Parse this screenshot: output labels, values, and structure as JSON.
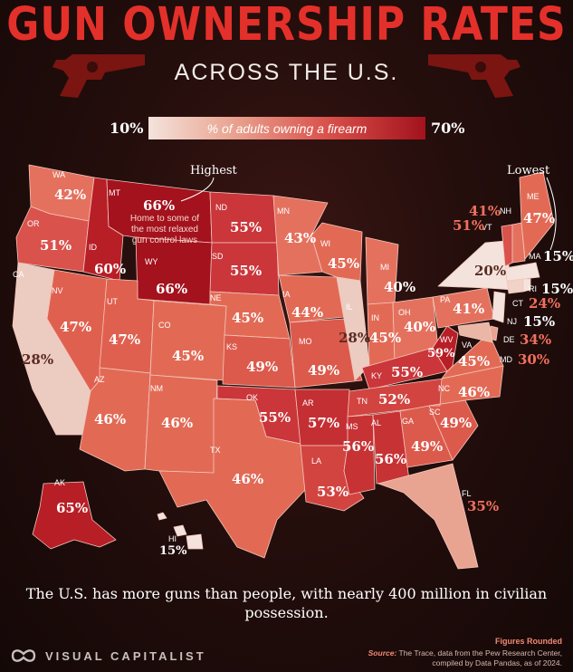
{
  "title": "GUN OWNERSHIP RATES",
  "subtitle": "ACROSS THE U.S.",
  "legend": {
    "min": "10%",
    "max": "70%",
    "label": "% of adults owning a firearm"
  },
  "annotations": {
    "highest": "Highest",
    "lowest": "Lowest",
    "mt_note": "Home to some of the most relaxed gun control laws"
  },
  "colors": {
    "low": "#f4e3dc",
    "mid": "#d9504a",
    "high": "#a3121d",
    "title": "#e4302a"
  },
  "states": [
    {
      "abbr": "WA",
      "value": "42%"
    },
    {
      "abbr": "OR",
      "value": "51%"
    },
    {
      "abbr": "CA",
      "value": "28%"
    },
    {
      "abbr": "ID",
      "value": "60%"
    },
    {
      "abbr": "NV",
      "value": "47%"
    },
    {
      "abbr": "MT",
      "value": "66%"
    },
    {
      "abbr": "WY",
      "value": "66%"
    },
    {
      "abbr": "UT",
      "value": "47%"
    },
    {
      "abbr": "AZ",
      "value": "46%"
    },
    {
      "abbr": "CO",
      "value": "45%"
    },
    {
      "abbr": "NM",
      "value": "46%"
    },
    {
      "abbr": "ND",
      "value": "55%"
    },
    {
      "abbr": "SD",
      "value": "55%"
    },
    {
      "abbr": "NE",
      "value": "45%"
    },
    {
      "abbr": "KS",
      "value": "49%"
    },
    {
      "abbr": "OK",
      "value": "55%"
    },
    {
      "abbr": "TX",
      "value": "46%"
    },
    {
      "abbr": "MN",
      "value": "43%"
    },
    {
      "abbr": "IA",
      "value": "44%"
    },
    {
      "abbr": "MO",
      "value": "49%"
    },
    {
      "abbr": "AR",
      "value": "57%"
    },
    {
      "abbr": "LA",
      "value": "53%"
    },
    {
      "abbr": "WI",
      "value": "45%"
    },
    {
      "abbr": "IL",
      "value": "28%"
    },
    {
      "abbr": "MI",
      "value": "40%"
    },
    {
      "abbr": "IN",
      "value": "45%"
    },
    {
      "abbr": "OH",
      "value": "40%"
    },
    {
      "abbr": "KY",
      "value": "55%"
    },
    {
      "abbr": "TN",
      "value": "52%"
    },
    {
      "abbr": "MS",
      "value": "56%"
    },
    {
      "abbr": "AL",
      "value": "56%"
    },
    {
      "abbr": "GA",
      "value": "49%"
    },
    {
      "abbr": "FL",
      "value": "35%"
    },
    {
      "abbr": "SC",
      "value": "49%"
    },
    {
      "abbr": "NC",
      "value": "46%"
    },
    {
      "abbr": "VA",
      "value": "45%"
    },
    {
      "abbr": "WV",
      "value": "59%"
    },
    {
      "abbr": "PA",
      "value": "41%"
    },
    {
      "abbr": "NY",
      "value": "20%"
    },
    {
      "abbr": "ME",
      "value": "47%"
    },
    {
      "abbr": "NH",
      "value": "41%"
    },
    {
      "abbr": "VT",
      "value": "51%"
    },
    {
      "abbr": "MA",
      "value": "15%"
    },
    {
      "abbr": "RI",
      "value": "15%"
    },
    {
      "abbr": "CT",
      "value": "24%"
    },
    {
      "abbr": "NJ",
      "value": "15%"
    },
    {
      "abbr": "DE",
      "value": "34%"
    },
    {
      "abbr": "MD",
      "value": "30%"
    },
    {
      "abbr": "AK",
      "value": "65%"
    },
    {
      "abbr": "HI",
      "value": "15%"
    }
  ],
  "footer": "The U.S. has more guns than people, with nearly 400 million in civilian possession.",
  "brand": "VISUAL CAPITALIST",
  "figures_rounded": "Figures Rounded",
  "source_label": "Source:",
  "source_text": "The Trace, data from the Pew Research Center, compiled by Data Pandas, as of 2024."
}
